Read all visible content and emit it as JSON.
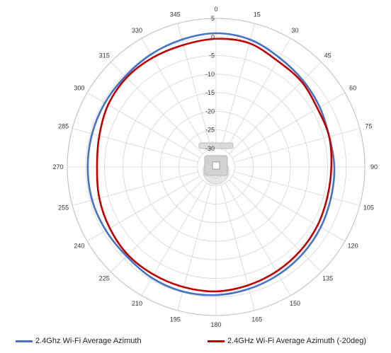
{
  "chart_data": {
    "type": "radar",
    "angle_unit": "degrees",
    "angle_direction": "clockwise",
    "angle_zero": "top",
    "angle_ticks": [
      "0",
      "15",
      "30",
      "45",
      "60",
      "75",
      "90",
      "105",
      "120",
      "135",
      "150",
      "165",
      "180",
      "195",
      "210",
      "225",
      "240",
      "255",
      "270",
      "285",
      "300",
      "315",
      "330",
      "345"
    ],
    "radial_ticks": [
      "5",
      "0",
      "-5",
      "-10",
      "-15",
      "-20",
      "-25",
      "-30"
    ],
    "radial_range": [
      -35,
      5
    ],
    "grid": true,
    "legend_position": "bottom",
    "title": "",
    "center_image": "access-point-device",
    "series": [
      {
        "name": "2.4Ghz Wi-Fi Average Azimuth",
        "color": "#4472C4",
        "theta": [
          0,
          15,
          30,
          45,
          60,
          75,
          90,
          105,
          120,
          135,
          150,
          165,
          180,
          195,
          210,
          225,
          240,
          255,
          270,
          285,
          300,
          315,
          330,
          345
        ],
        "r": [
          1.0,
          0.5,
          -1.0,
          -2.0,
          -2.8,
          -3.5,
          -3.2,
          -3.0,
          -2.5,
          -2.0,
          -1.5,
          -1.0,
          -0.5,
          -0.3,
          -0.5,
          -1.0,
          -0.8,
          -0.5,
          -0.5,
          -0.5,
          -0.5,
          -0.5,
          0.0,
          0.5
        ]
      },
      {
        "name": "2.4GHz Wi-Fi Average Azimuth (-20deg)",
        "color": "#C00000",
        "theta": [
          0,
          15,
          30,
          45,
          60,
          75,
          90,
          105,
          120,
          135,
          150,
          165,
          180,
          195,
          210,
          225,
          240,
          255,
          270,
          285,
          300,
          315,
          330,
          345
        ],
        "r": [
          -0.5,
          -0.5,
          -2.0,
          -2.5,
          -3.5,
          -3.5,
          -4.0,
          -4.0,
          -3.5,
          -3.0,
          -2.5,
          -2.0,
          -1.5,
          -1.5,
          -1.5,
          -1.5,
          -2.0,
          -2.5,
          -3.0,
          -2.5,
          -1.5,
          -1.0,
          -1.0,
          -1.0
        ]
      }
    ]
  }
}
